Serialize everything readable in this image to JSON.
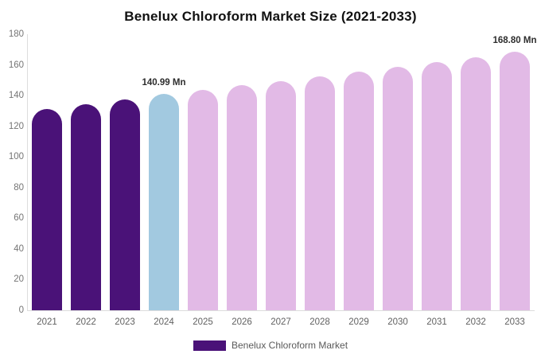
{
  "title": "Benelux Chloroform Market Size (2021-2033)",
  "legend": {
    "label": "Benelux Chloroform Market",
    "swatch_color": "#4a1278"
  },
  "colors": {
    "historical_purple": "#4a1278",
    "current_year_blue": "#a2c9e0",
    "forecast_pink": "#e2bae6",
    "axis_line": "#dddddd",
    "tick_text": "#757575",
    "title_text": "#111111"
  },
  "chart_data": {
    "type": "bar",
    "title": "Benelux Chloroform Market Size (2021-2033)",
    "categories": [
      "2021",
      "2022",
      "2023",
      "2024",
      "2025",
      "2026",
      "2027",
      "2028",
      "2029",
      "2030",
      "2031",
      "2032",
      "2033"
    ],
    "values": [
      131.2,
      134.4,
      137.6,
      140.99,
      143.9,
      146.7,
      149.6,
      152.5,
      155.5,
      158.5,
      161.6,
      164.8,
      168.8
    ],
    "bar_colors": [
      "#4a1278",
      "#4a1278",
      "#4a1278",
      "#a2c9e0",
      "#e2bae6",
      "#e2bae6",
      "#e2bae6",
      "#e2bae6",
      "#e2bae6",
      "#e2bae6",
      "#e2bae6",
      "#e2bae6",
      "#e2bae6"
    ],
    "value_labels": [
      {
        "category": "2024",
        "text": "140.99 Mn"
      },
      {
        "category": "2033",
        "text": "168.80 Mn"
      }
    ],
    "xlabel": "",
    "ylabel": "",
    "ylim": [
      0,
      180
    ],
    "ytick_step": 20,
    "grid": false,
    "legend_position": "bottom",
    "series_name": "Benelux Chloroform Market"
  }
}
